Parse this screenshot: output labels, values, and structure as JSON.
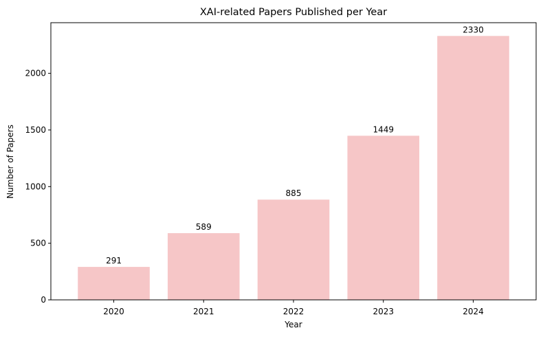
{
  "chart_data": {
    "type": "bar",
    "title": "XAI-related Papers Published per Year",
    "xlabel": "Year",
    "ylabel": "Number of Papers",
    "categories": [
      "2020",
      "2021",
      "2022",
      "2023",
      "2024"
    ],
    "values": [
      291,
      589,
      885,
      1449,
      2330
    ],
    "data_labels": [
      "291",
      "589",
      "885",
      "1449",
      "2330"
    ],
    "y_ticks": [
      0,
      500,
      1000,
      1500,
      2000
    ],
    "y_tick_labels": [
      "0",
      "500",
      "1000",
      "1500",
      "2000"
    ],
    "ylim": [
      0,
      2447
    ],
    "grid": false,
    "legend": "none",
    "bar_color": "#f6c6c7",
    "axis_color": "#000000"
  }
}
